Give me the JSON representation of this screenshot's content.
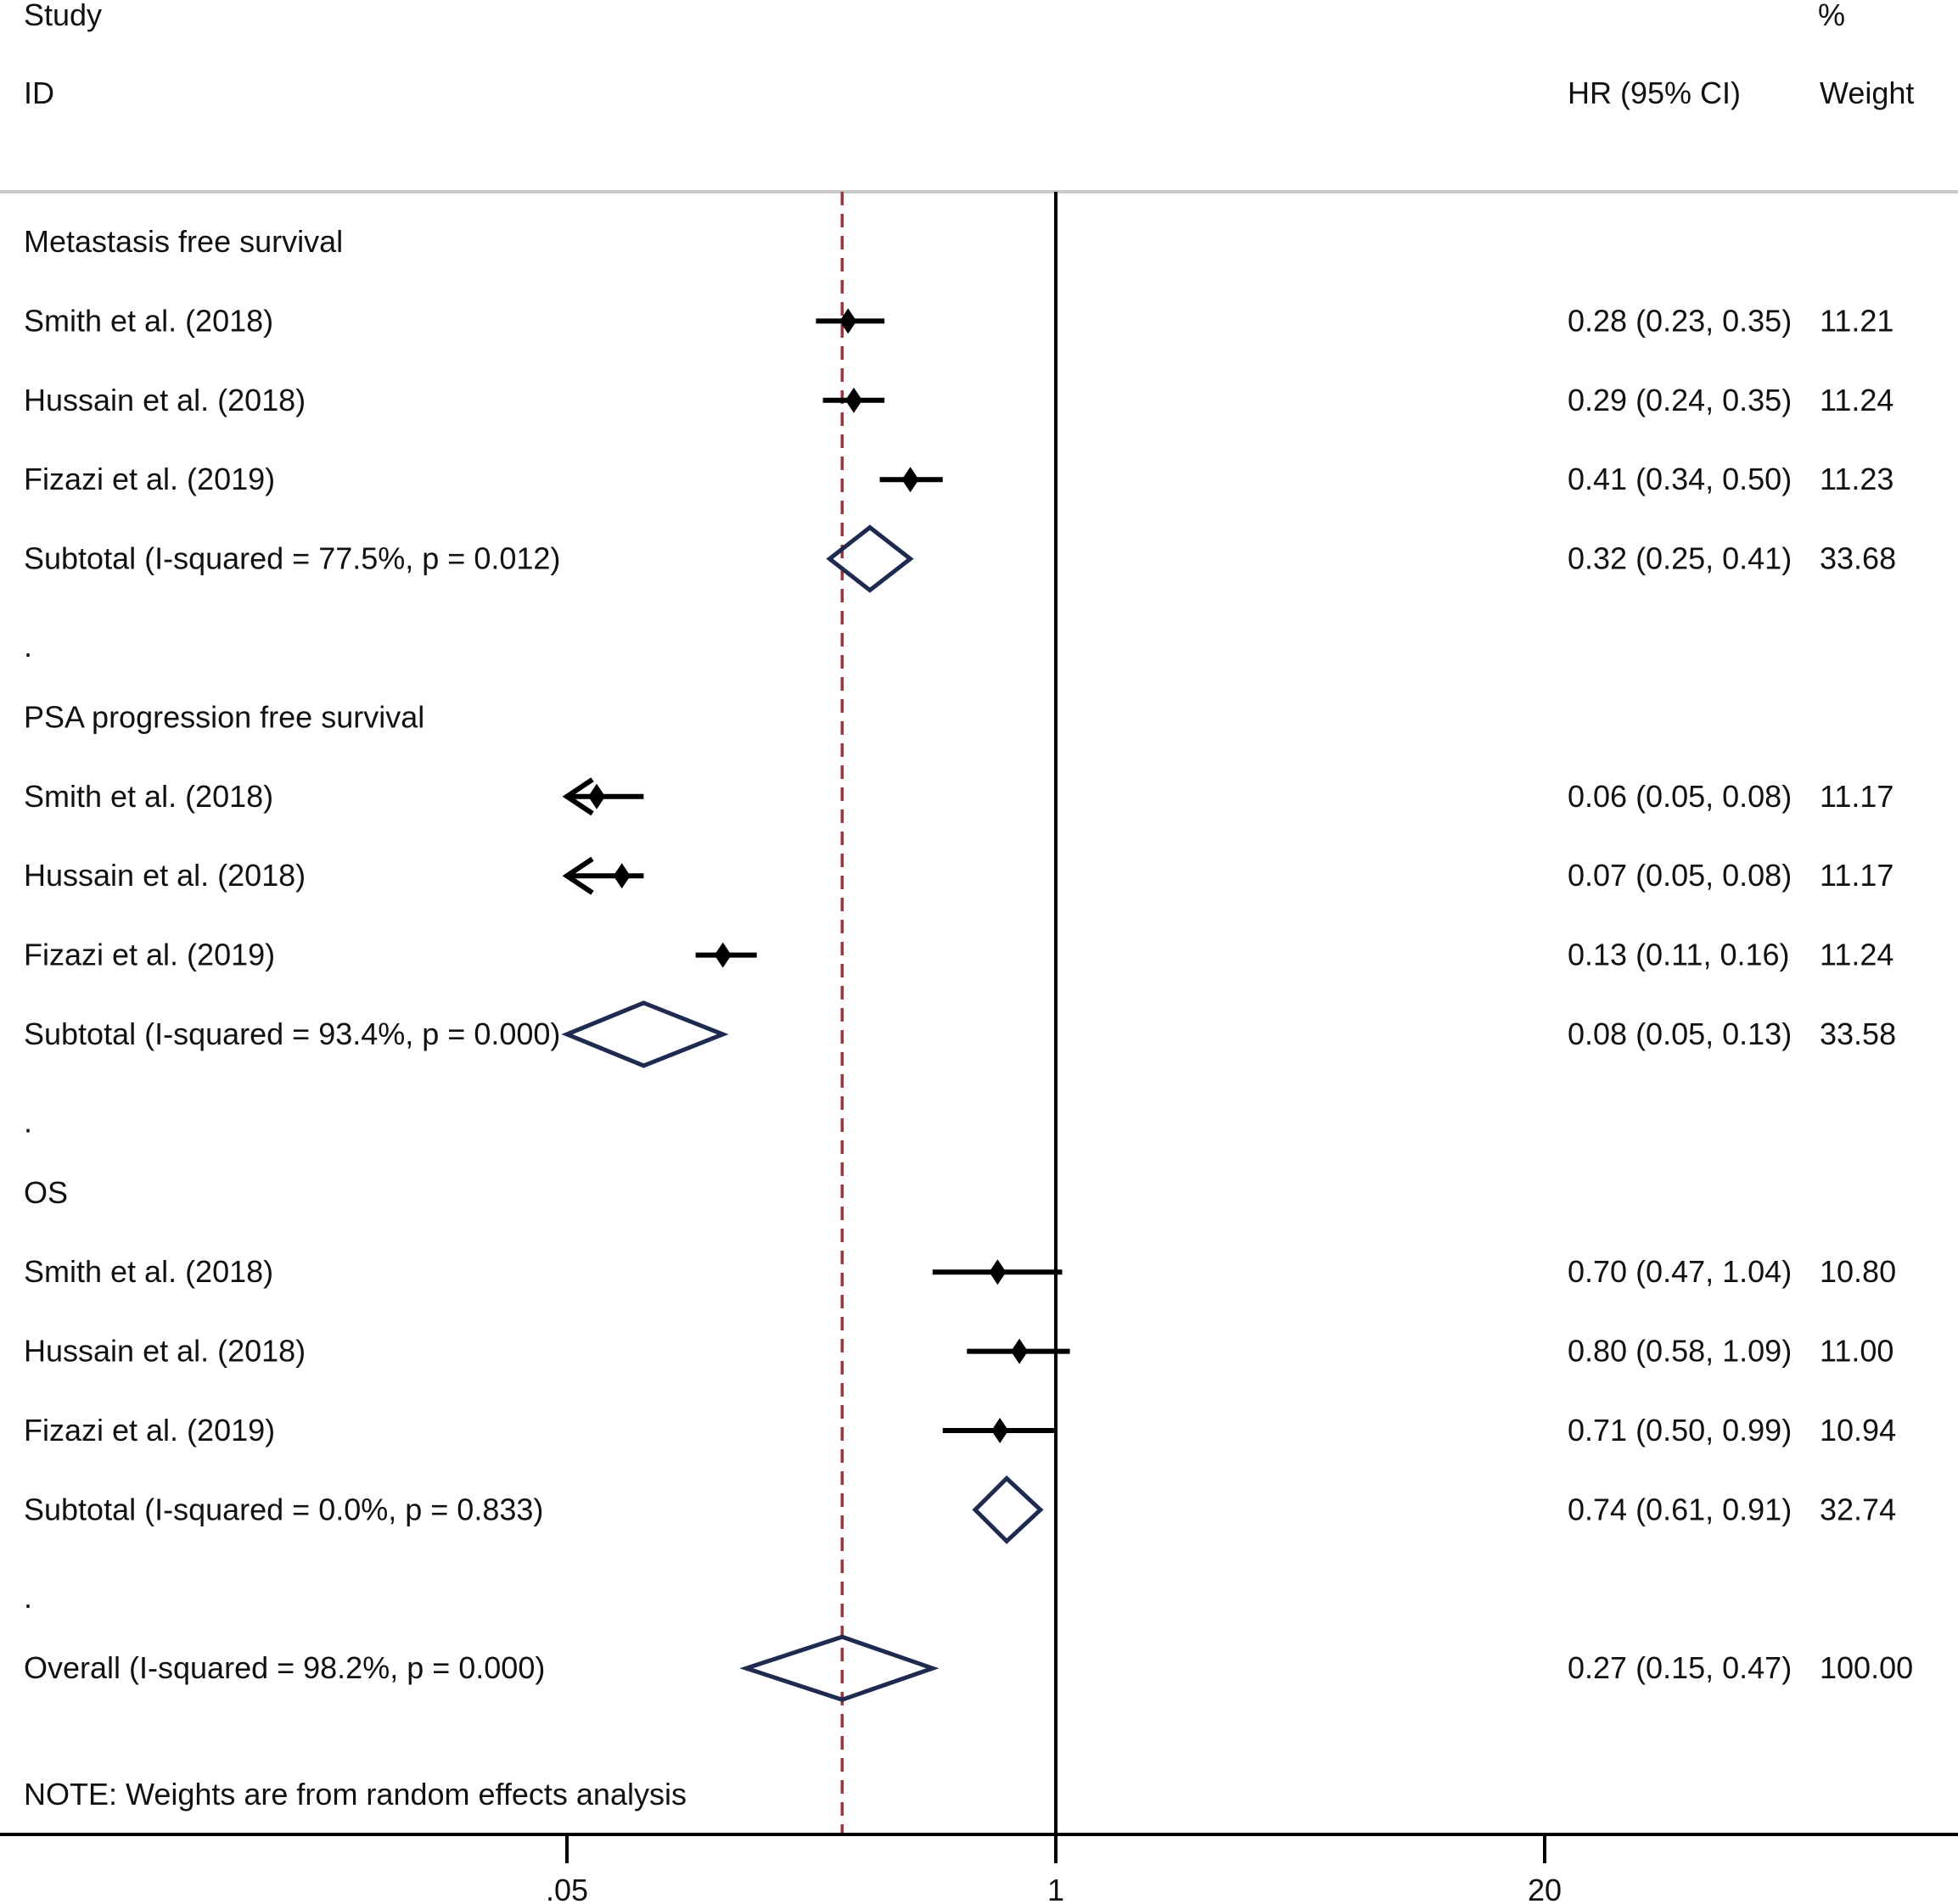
{
  "header": {
    "study": "Study",
    "id": "ID",
    "hr": "HR (95% CI)",
    "pct": "%",
    "weight": "Weight"
  },
  "footnote": "NOTE: Weights are from random effects analysis",
  "colors": {
    "marker": "#000000",
    "diamond": "#1f2a50",
    "overall_line": "#a83232",
    "axis": "#000000",
    "header_rule": "#c8c8c8"
  },
  "chart_data": {
    "type": "forest",
    "x_scale": "log",
    "xlim": [
      0.02,
      50
    ],
    "x_ticks": [
      0.05,
      1,
      20
    ],
    "x_tick_labels": [
      ".05",
      "1",
      "20"
    ],
    "null_line": 1,
    "overall_estimate": 0.27,
    "arrows_clip_below": 0.05,
    "rows": [
      {
        "kind": "group",
        "label": "Metastasis free survival"
      },
      {
        "kind": "study",
        "label": "Smith et al. (2018)",
        "hr": 0.28,
        "lo": 0.23,
        "hi": 0.35,
        "text": "0.28 (0.23, 0.35)",
        "weight": "11.21"
      },
      {
        "kind": "study",
        "label": "Hussain et al. (2018)",
        "hr": 0.29,
        "lo": 0.24,
        "hi": 0.35,
        "text": "0.29 (0.24, 0.35)",
        "weight": "11.24"
      },
      {
        "kind": "study",
        "label": "Fizazi et al. (2019)",
        "hr": 0.41,
        "lo": 0.34,
        "hi": 0.5,
        "text": "0.41 (0.34, 0.50)",
        "weight": "11.23"
      },
      {
        "kind": "subtotal",
        "label": "Subtotal  (I-squared = 77.5%, p = 0.012)",
        "hr": 0.32,
        "lo": 0.25,
        "hi": 0.41,
        "text": "0.32 (0.25, 0.41)",
        "weight": "33.68"
      },
      {
        "kind": "spacer",
        "label": "."
      },
      {
        "kind": "group",
        "label": "PSA progression free survival"
      },
      {
        "kind": "study",
        "label": "Smith et al. (2018)",
        "hr": 0.06,
        "lo": 0.05,
        "hi": 0.08,
        "text": "0.06 (0.05, 0.08)",
        "weight": "11.17"
      },
      {
        "kind": "study",
        "label": "Hussain et al. (2018)",
        "hr": 0.07,
        "lo": 0.05,
        "hi": 0.08,
        "text": "0.07 (0.05, 0.08)",
        "weight": "11.17"
      },
      {
        "kind": "study",
        "label": "Fizazi et al. (2019)",
        "hr": 0.13,
        "lo": 0.11,
        "hi": 0.16,
        "text": "0.13 (0.11, 0.16)",
        "weight": "11.24"
      },
      {
        "kind": "subtotal",
        "label": "Subtotal  (I-squared = 93.4%, p = 0.000)",
        "hr": 0.08,
        "lo": 0.05,
        "hi": 0.13,
        "text": "0.08 (0.05, 0.13)",
        "weight": "33.58"
      },
      {
        "kind": "spacer",
        "label": "."
      },
      {
        "kind": "group",
        "label": "OS"
      },
      {
        "kind": "study",
        "label": "Smith et al. (2018)",
        "hr": 0.7,
        "lo": 0.47,
        "hi": 1.04,
        "text": "0.70 (0.47, 1.04)",
        "weight": "10.80"
      },
      {
        "kind": "study",
        "label": "Hussain et al. (2018)",
        "hr": 0.8,
        "lo": 0.58,
        "hi": 1.09,
        "text": "0.80 (0.58, 1.09)",
        "weight": "11.00"
      },
      {
        "kind": "study",
        "label": "Fizazi et al. (2019)",
        "hr": 0.71,
        "lo": 0.5,
        "hi": 0.99,
        "text": "0.71 (0.50, 0.99)",
        "weight": "10.94"
      },
      {
        "kind": "subtotal",
        "label": "Subtotal  (I-squared = 0.0%, p = 0.833)",
        "hr": 0.74,
        "lo": 0.61,
        "hi": 0.91,
        "text": "0.74 (0.61, 0.91)",
        "weight": "32.74"
      },
      {
        "kind": "spacer",
        "label": "."
      },
      {
        "kind": "overall",
        "label": "Overall  (I-squared = 98.2%, p = 0.000)",
        "hr": 0.27,
        "lo": 0.15,
        "hi": 0.47,
        "text": "0.27 (0.15, 0.47)",
        "weight": "100.00"
      }
    ]
  }
}
